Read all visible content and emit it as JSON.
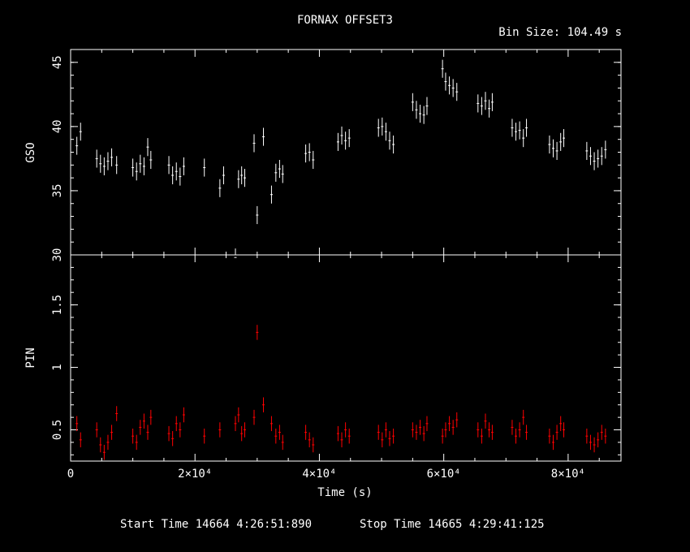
{
  "title": "FORNAX OFFSET3",
  "bin_size": "Bin Size: 104.49 s",
  "start_time": "Start Time 14664  4:26:51:890",
  "stop_time": "Stop Time 14665  4:29:41:125",
  "colors": {
    "background": "#000000",
    "axes": "#ffffff",
    "gso": "#ffffff",
    "pin": "#ff0000"
  },
  "chart_data": [
    {
      "type": "scatter",
      "panel": "top",
      "ylabel": "GSO",
      "xlabel": "",
      "xlim": [
        0,
        88500
      ],
      "ylim": [
        30,
        46
      ],
      "y_ticks": [
        30,
        35,
        40,
        45
      ],
      "y_tick_labels": [
        "30",
        "35",
        "40",
        "45"
      ],
      "error_bars": true,
      "series": [
        {
          "color": "#ffffff",
          "points": [
            [
              1000,
              38.5
            ],
            [
              1600,
              39.6
            ],
            [
              4200,
              37.5
            ],
            [
              4800,
              37.1
            ],
            [
              5400,
              36.9
            ],
            [
              6000,
              37.3
            ],
            [
              6600,
              37.6
            ],
            [
              7400,
              37.0
            ],
            [
              10000,
              36.8
            ],
            [
              10600,
              36.5
            ],
            [
              11200,
              37.1
            ],
            [
              11800,
              36.9
            ],
            [
              12400,
              38.4
            ],
            [
              12900,
              37.4
            ],
            [
              15800,
              37.0
            ],
            [
              16400,
              36.2
            ],
            [
              17000,
              36.5
            ],
            [
              17600,
              36.1
            ],
            [
              18200,
              36.9
            ],
            [
              21500,
              36.8
            ],
            [
              24000,
              35.2
            ],
            [
              24600,
              36.2
            ],
            [
              26500,
              29.8
            ],
            [
              27000,
              35.9
            ],
            [
              27500,
              36.2
            ],
            [
              28000,
              36.0
            ],
            [
              29500,
              38.7
            ],
            [
              30000,
              33.1
            ],
            [
              31000,
              39.2
            ],
            [
              32300,
              34.7
            ],
            [
              33000,
              36.4
            ],
            [
              33600,
              36.7
            ],
            [
              34100,
              36.3
            ],
            [
              37800,
              37.9
            ],
            [
              38400,
              38.0
            ],
            [
              39000,
              37.4
            ],
            [
              43000,
              38.8
            ],
            [
              43600,
              39.3
            ],
            [
              44200,
              38.9
            ],
            [
              44800,
              39.1
            ],
            [
              49500,
              39.9
            ],
            [
              50100,
              40.0
            ],
            [
              50700,
              39.6
            ],
            [
              51300,
              38.9
            ],
            [
              51900,
              38.6
            ],
            [
              55000,
              41.9
            ],
            [
              55600,
              41.3
            ],
            [
              56200,
              41.0
            ],
            [
              56800,
              40.9
            ],
            [
              57300,
              41.6
            ],
            [
              59800,
              44.5
            ],
            [
              60300,
              43.5
            ],
            [
              60900,
              43.2
            ],
            [
              61500,
              43.0
            ],
            [
              62100,
              42.7
            ],
            [
              65500,
              41.8
            ],
            [
              66100,
              41.6
            ],
            [
              66700,
              42.0
            ],
            [
              67300,
              41.4
            ],
            [
              67800,
              41.9
            ],
            [
              71000,
              39.9
            ],
            [
              71600,
              39.6
            ],
            [
              72200,
              39.7
            ],
            [
              72800,
              39.1
            ],
            [
              73300,
              39.9
            ],
            [
              77000,
              38.6
            ],
            [
              77600,
              38.3
            ],
            [
              78200,
              38.1
            ],
            [
              78800,
              38.8
            ],
            [
              79300,
              39.1
            ],
            [
              83000,
              38.1
            ],
            [
              83600,
              37.7
            ],
            [
              84200,
              37.3
            ],
            [
              84800,
              37.5
            ],
            [
              85400,
              37.7
            ],
            [
              86000,
              38.2
            ]
          ]
        }
      ]
    },
    {
      "type": "scatter",
      "panel": "bottom",
      "ylabel": "PIN",
      "xlabel": "Time (s)",
      "xlim": [
        0,
        88500
      ],
      "ylim": [
        0.25,
        1.9
      ],
      "y_ticks": [
        0.5,
        1,
        1.5
      ],
      "y_tick_labels": [
        "0.5",
        "1",
        "1.5"
      ],
      "x_ticks": [
        0,
        20000,
        40000,
        60000,
        80000
      ],
      "x_tick_labels": [
        "0",
        "2×10⁴",
        "4×10⁴",
        "6×10⁴",
        "8×10⁴"
      ],
      "error_bars": true,
      "series": [
        {
          "color": "#ff0000",
          "points": [
            [
              1000,
              0.55
            ],
            [
              1600,
              0.42
            ],
            [
              4200,
              0.5
            ],
            [
              4800,
              0.38
            ],
            [
              5400,
              0.32
            ],
            [
              6000,
              0.4
            ],
            [
              6600,
              0.48
            ],
            [
              7400,
              0.63
            ],
            [
              10000,
              0.45
            ],
            [
              10600,
              0.4
            ],
            [
              11200,
              0.52
            ],
            [
              11800,
              0.57
            ],
            [
              12400,
              0.48
            ],
            [
              12900,
              0.6
            ],
            [
              15800,
              0.47
            ],
            [
              16400,
              0.43
            ],
            [
              17000,
              0.55
            ],
            [
              17600,
              0.5
            ],
            [
              18200,
              0.62
            ],
            [
              21500,
              0.45
            ],
            [
              24000,
              0.5
            ],
            [
              26500,
              0.55
            ],
            [
              27000,
              0.62
            ],
            [
              27500,
              0.47
            ],
            [
              28000,
              0.5
            ],
            [
              29500,
              0.6
            ],
            [
              30000,
              1.28
            ],
            [
              31000,
              0.7
            ],
            [
              32300,
              0.55
            ],
            [
              33000,
              0.45
            ],
            [
              33600,
              0.48
            ],
            [
              34100,
              0.4
            ],
            [
              37800,
              0.48
            ],
            [
              38400,
              0.42
            ],
            [
              39000,
              0.38
            ],
            [
              43000,
              0.47
            ],
            [
              43600,
              0.42
            ],
            [
              44200,
              0.5
            ],
            [
              44800,
              0.45
            ],
            [
              49500,
              0.48
            ],
            [
              50100,
              0.42
            ],
            [
              50700,
              0.5
            ],
            [
              51300,
              0.43
            ],
            [
              51900,
              0.45
            ],
            [
              55000,
              0.5
            ],
            [
              55600,
              0.48
            ],
            [
              56200,
              0.52
            ],
            [
              56800,
              0.47
            ],
            [
              57300,
              0.55
            ],
            [
              59800,
              0.45
            ],
            [
              60300,
              0.5
            ],
            [
              60900,
              0.55
            ],
            [
              61500,
              0.52
            ],
            [
              62100,
              0.58
            ],
            [
              65500,
              0.5
            ],
            [
              66100,
              0.45
            ],
            [
              66700,
              0.57
            ],
            [
              67300,
              0.5
            ],
            [
              67800,
              0.48
            ],
            [
              71000,
              0.52
            ],
            [
              71600,
              0.45
            ],
            [
              72200,
              0.5
            ],
            [
              72800,
              0.6
            ],
            [
              73300,
              0.48
            ],
            [
              77000,
              0.45
            ],
            [
              77600,
              0.4
            ],
            [
              78200,
              0.48
            ],
            [
              78800,
              0.55
            ],
            [
              79300,
              0.5
            ],
            [
              83000,
              0.45
            ],
            [
              83600,
              0.4
            ],
            [
              84200,
              0.38
            ],
            [
              84800,
              0.42
            ],
            [
              85400,
              0.48
            ],
            [
              86000,
              0.45
            ]
          ]
        }
      ]
    }
  ]
}
